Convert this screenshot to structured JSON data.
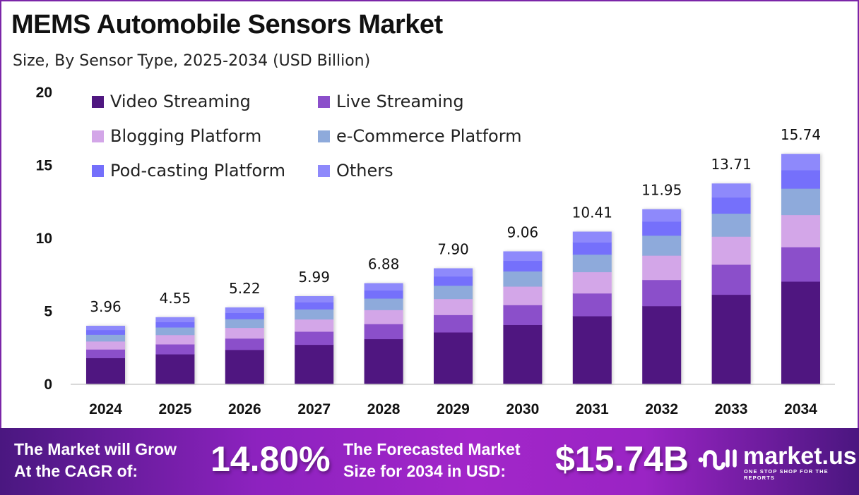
{
  "header": {
    "title": "MEMS Automobile Sensors Market",
    "subtitle": "Size, By Sensor Type, 2025-2034 (USD Billion)"
  },
  "chart_data": {
    "type": "bar",
    "stacked": true,
    "title": "MEMS Automobile Sensors Market",
    "subtitle": "Size, By Sensor Type, 2025-2034 (USD Billion)",
    "xlabel": "",
    "ylabel": "",
    "ylim": [
      0,
      20
    ],
    "yticks": [
      0,
      5,
      10,
      15,
      20
    ],
    "grid": false,
    "legend_position": "top-left",
    "categories": [
      "2024",
      "2025",
      "2026",
      "2027",
      "2028",
      "2029",
      "2030",
      "2031",
      "2032",
      "2033",
      "2034"
    ],
    "totals": [
      3.96,
      4.55,
      5.22,
      5.99,
      6.88,
      7.9,
      9.06,
      10.41,
      11.95,
      13.71,
      15.74
    ],
    "series": [
      {
        "name": "Video Streaming",
        "color": "#4f1780",
        "values": [
          1.76,
          2.02,
          2.32,
          2.67,
          3.06,
          3.52,
          4.03,
          4.63,
          5.32,
          6.1,
          7.0
        ]
      },
      {
        "name": "Live Streaming",
        "color": "#8b4fca",
        "values": [
          0.59,
          0.68,
          0.78,
          0.9,
          1.03,
          1.19,
          1.36,
          1.56,
          1.79,
          2.06,
          2.36
        ]
      },
      {
        "name": "Blogging Platform",
        "color": "#d3a6e8",
        "values": [
          0.55,
          0.64,
          0.73,
          0.84,
          0.96,
          1.1,
          1.27,
          1.46,
          1.67,
          1.92,
          2.2
        ]
      },
      {
        "name": "e-Commerce Platform",
        "color": "#8eaadb",
        "values": [
          0.46,
          0.52,
          0.6,
          0.69,
          0.79,
          0.91,
          1.04,
          1.2,
          1.37,
          1.58,
          1.81
        ]
      },
      {
        "name": "Pod-casting Platform",
        "color": "#746ffb",
        "values": [
          0.32,
          0.36,
          0.42,
          0.48,
          0.55,
          0.63,
          0.72,
          0.83,
          0.96,
          1.1,
          1.26
        ]
      },
      {
        "name": "Others",
        "color": "#8e89fb",
        "values": [
          0.28,
          0.33,
          0.37,
          0.41,
          0.49,
          0.55,
          0.64,
          0.73,
          0.84,
          0.95,
          1.11
        ]
      }
    ],
    "data_labels": [
      "3.96",
      "4.55",
      "5.22",
      "5.99",
      "6.88",
      "7.90",
      "9.06",
      "10.41",
      "11.95",
      "13.71",
      "15.74"
    ]
  },
  "footer": {
    "cagr_text_line1": "The Market will Grow",
    "cagr_text_line2": "At the CAGR of:",
    "cagr_value": "14.80%",
    "forecast_text_line1": "The Forecasted Market",
    "forecast_text_line2": "Size for 2034 in USD:",
    "forecast_value": "$15.74B",
    "logo_name": "market.us",
    "logo_tagline": "ONE STOP SHOP FOR THE REPORTS"
  }
}
